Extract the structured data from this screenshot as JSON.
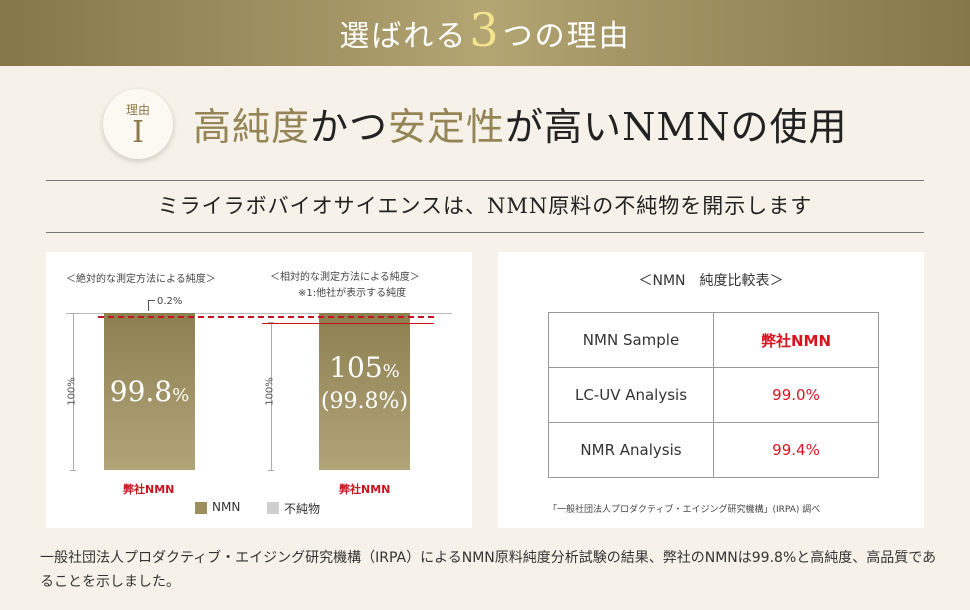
{
  "banner": {
    "pre": "選ばれる",
    "num": "3",
    "post": "つの理由"
  },
  "reason": {
    "label": "理由",
    "roman": "I"
  },
  "headline": {
    "p1": "高純度",
    "p2": "かつ",
    "p3": "安定性",
    "p4": "が高い",
    "p5": "NMN",
    "p6": "の使用"
  },
  "subheading": "ミライラボバイオサイエンスは、NMN原料の不純物を開示します",
  "chart_data": {
    "type": "bar",
    "categories": [
      "弊社NMN",
      "弊社NMN"
    ],
    "captions": [
      "＜絶対的な測定方法による純度＞",
      "＜相対的な測定方法による純度＞"
    ],
    "sub_caption": "※1:他社が表示する純度",
    "series": [
      {
        "name": "NMN",
        "values": [
          99.8,
          99.8
        ]
      },
      {
        "name": "不純物",
        "values": [
          0.2,
          0.2
        ]
      }
    ],
    "value_labels": [
      {
        "main": "99.8",
        "unit": "%"
      },
      {
        "main": "105",
        "unit": "%",
        "sub": "(99.8%)"
      }
    ],
    "impurity_label": "0.2%",
    "axis_label": "100%",
    "ylim": [
      0,
      100
    ],
    "legend_position": "bottom",
    "colors": {
      "nmn": "#9c8f5f",
      "impurity": "#cfcfcf",
      "marker": "#c8141e"
    }
  },
  "comparison": {
    "title": "＜NMN　純度比較表＞",
    "rows": [
      {
        "label": "NMN Sample",
        "value": "弊社NMN"
      },
      {
        "label": "LC-UV Analysis",
        "value": "99.0%"
      },
      {
        "label": "NMR Analysis",
        "value": "99.4%"
      }
    ],
    "source": "「一般社団法人プロダクティブ・エイジング研究機構」(IRPA) 調べ"
  },
  "footnote": "一般社団法人プロダクティブ・エイジング研究機構（IRPA）によるNMN原料純度分析試験の結果、弊社のNMNは99.8%と高純度、高品質であることを示しました。"
}
